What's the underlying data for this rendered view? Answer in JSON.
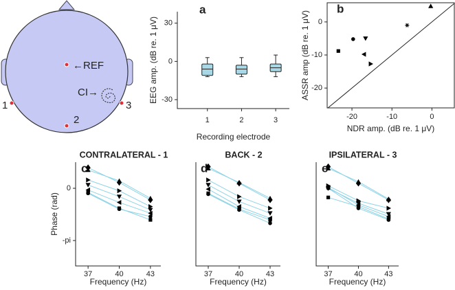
{
  "diagram": {
    "reference": "←REF",
    "ci": "CI→",
    "electrodes": [
      "1",
      "2",
      "3"
    ]
  },
  "chart_data": [
    {
      "type": "box",
      "label": "a",
      "ylabel": "EEG amp. (dB re. 1 μV)",
      "xlabel": "Recording electrode",
      "x": [
        1,
        2,
        3
      ],
      "xlim": [
        0.12,
        3.4
      ],
      "xticks": [
        1,
        2,
        3
      ],
      "ylim": [
        -37,
        39
      ],
      "yticks": [
        -30,
        0,
        30
      ],
      "color": "#a8d8e6",
      "min": [
        -12,
        -12,
        -12
      ],
      "q1": [
        -11,
        -10,
        -8
      ],
      "median": [
        -6,
        -6,
        -5
      ],
      "q3": [
        -2,
        -3,
        -2
      ],
      "max": [
        3,
        3,
        5
      ]
    },
    {
      "type": "scatter",
      "label": "b",
      "xlabel": "NDR amp. (dB re. 1 μV)",
      "ylabel": "ASSR amp (dB re. 1 μV)",
      "xlim": [
        -26.2,
        5.6
      ],
      "ylim": [
        -26,
        5.8
      ],
      "xticks": [
        -20,
        -10,
        0
      ],
      "yticks": [
        -20,
        -10,
        0
      ],
      "x": [
        -23.4,
        -19.7,
        -16.6,
        -17,
        -15.3,
        -6.2,
        -0.3
      ],
      "y": [
        -8.8,
        -5.2,
        -5,
        -9.8,
        -12.7,
        -1,
        4.8
      ],
      "markers": [
        "square",
        "circle",
        "down",
        "left",
        "right",
        "star",
        "up"
      ],
      "color": "#000000",
      "diagonal": true
    },
    {
      "type": "line",
      "label": "c",
      "title": "CONTRALATERAL - 1",
      "ylabel": "Phase (rad)",
      "xlabel": "Frequency (Hz)",
      "x": [
        37,
        40,
        43
      ],
      "xlim": [
        35.8,
        44
      ],
      "xticks": [
        37,
        40,
        43
      ],
      "ylim": [
        -4.67,
        1.57
      ],
      "yticks": [
        0,
        {
          "value": -3.1416,
          "label": "-pi"
        }
      ],
      "line_color": "#8fd3e6",
      "series": [
        {
          "marker": "diamond",
          "color": "#000000",
          "values": [
            1.24,
            0.35,
            -0.7
          ]
        },
        {
          "marker": "up",
          "color": "#000000",
          "values": [
            1.1,
            0.45,
            -0.6
          ]
        },
        {
          "marker": "right",
          "color": "#000000",
          "values": [
            0.5,
            -0.15,
            -1.1
          ]
        },
        {
          "marker": "down",
          "color": "#000000",
          "values": [
            0.2,
            -0.5,
            -1.3
          ]
        },
        {
          "marker": "left",
          "color": "#000000",
          "values": [
            -0.1,
            -0.85,
            -1.5
          ]
        },
        {
          "marker": "square",
          "color": "#000000",
          "values": [
            -0.25,
            -1.2,
            -1.9
          ]
        },
        {
          "marker": "circle",
          "color": "#000000",
          "values": [
            -0.3,
            -1.25,
            -1.7
          ]
        }
      ]
    },
    {
      "type": "line",
      "label": "d",
      "title": "BACK - 2",
      "xlabel": "Frequency (Hz)",
      "x": [
        37,
        40,
        43
      ],
      "xlim": [
        35.8,
        44
      ],
      "xticks": [
        37,
        40,
        43
      ],
      "ylim": [
        -4.67,
        1.57
      ],
      "line_color": "#8fd3e6",
      "series": [
        {
          "marker": "diamond",
          "color": "#000000",
          "values": [
            1.3,
            0.3,
            -0.7
          ]
        },
        {
          "marker": "up",
          "color": "#000000",
          "values": [
            1.2,
            0.35,
            -0.6
          ]
        },
        {
          "marker": "right",
          "color": "#000000",
          "values": [
            0.5,
            -0.5,
            -1.2
          ]
        },
        {
          "marker": "down",
          "color": "#000000",
          "values": [
            0.2,
            -0.8,
            -1.5
          ]
        },
        {
          "marker": "left",
          "color": "#000000",
          "values": [
            -0.05,
            -1.1,
            -1.8
          ]
        },
        {
          "marker": "square",
          "color": "#000000",
          "values": [
            -0.3,
            -1.25,
            -1.9
          ]
        },
        {
          "marker": "circle",
          "color": "#000000",
          "values": [
            -0.35,
            -1.3,
            -2.1
          ]
        }
      ]
    },
    {
      "type": "line",
      "label": "e",
      "title": "IPSILATERAL - 3",
      "xlabel": "Frequency (Hz)",
      "x": [
        37,
        40,
        43
      ],
      "xlim": [
        35.8,
        44
      ],
      "xticks": [
        37,
        40,
        43
      ],
      "ylim": [
        -4.67,
        1.57
      ],
      "line_color": "#8fd3e6",
      "series": [
        {
          "marker": "diamond",
          "color": "#000000",
          "values": [
            1.3,
            0.3,
            -0.7
          ]
        },
        {
          "marker": "up",
          "color": "#000000",
          "values": [
            1.2,
            0.4,
            -0.65
          ]
        },
        {
          "marker": "right",
          "color": "#000000",
          "values": [
            0.15,
            -0.75,
            -1.2
          ]
        },
        {
          "marker": "down",
          "color": "#000000",
          "values": [
            0.0,
            -0.9,
            -1.55
          ]
        },
        {
          "marker": "left",
          "color": "#000000",
          "values": [
            0.05,
            -1.0,
            -1.7
          ]
        },
        {
          "marker": "square",
          "color": "#000000",
          "values": [
            -0.55,
            -1.1,
            -1.85
          ]
        },
        {
          "marker": "circle",
          "color": "#000000",
          "values": [
            0.0,
            -1.2,
            -1.9
          ]
        }
      ]
    }
  ]
}
